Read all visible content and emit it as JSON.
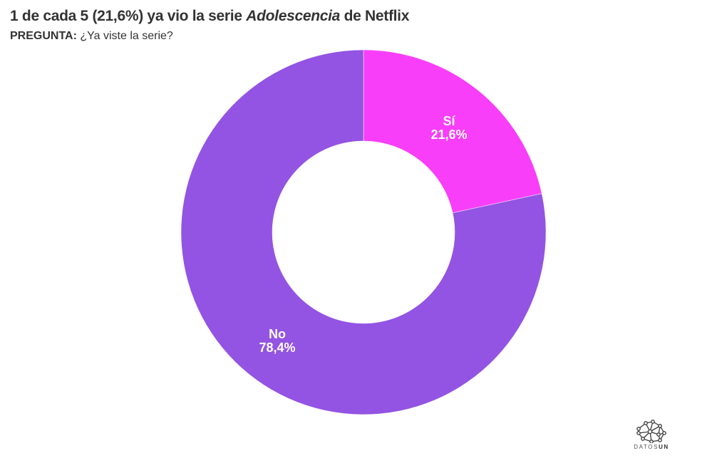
{
  "header": {
    "title_prefix": "1 de cada 5 (21,6%) ya vio la serie ",
    "title_italic": "Adolescencia",
    "title_suffix": " de Netflix",
    "subtitle_label": "PREGUNTA:",
    "subtitle_text": " ¿Ya viste la serie?"
  },
  "chart_data": {
    "type": "pie",
    "subtype": "donut",
    "title": "1 de cada 5 (21,6%) ya vio la serie Adolescencia de Netflix",
    "subtitle": "PREGUNTA: ¿Ya viste la serie?",
    "categories": [
      "Sí",
      "No"
    ],
    "values": [
      21.6,
      78.4
    ],
    "labels": [
      "21,6%",
      "78,4%"
    ],
    "colors": [
      "#f93ef9",
      "#9353e3"
    ],
    "start_angle_deg": 0,
    "direction": "clockwise",
    "hole_ratio": 0.5,
    "legend": "none",
    "center": [
      510,
      326
    ],
    "outer_radius": 256,
    "inner_radius": 128
  },
  "slices": [
    {
      "name": "Sí",
      "value_text": "21,6%"
    },
    {
      "name": "No",
      "value_text": "78,4%"
    }
  ],
  "branding": {
    "logo_icon": "network-nodes-icon",
    "logo_text_light": "DATOS",
    "logo_text_bold": "UN"
  }
}
